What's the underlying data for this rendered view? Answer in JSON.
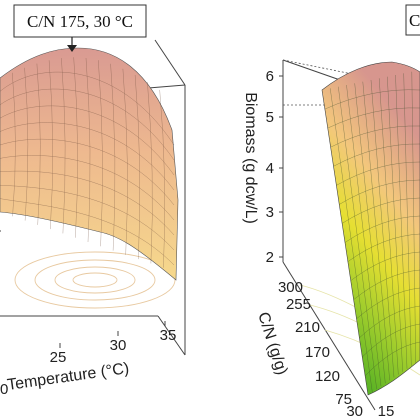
{
  "chart_data": [
    {
      "type": "surface",
      "panel": "left",
      "annotation": "C/N 175, 30 °C",
      "x_axis": {
        "label": "Temperature (°C)",
        "ticks": [
          "25",
          "30",
          "35"
        ],
        "partial_ticks": [
          "0"
        ]
      },
      "surface": {
        "shape": "inverted parabola (dome)",
        "optimum": {
          "cn": 175,
          "temperature": 30
        },
        "colormap": [
          "#d89a90",
          "#f0c79a",
          "#f5d38a"
        ]
      },
      "grid": true
    },
    {
      "type": "surface",
      "panel": "right",
      "annotation_partial": "C",
      "z_axis": {
        "label": "Biomass (g dcw/L)",
        "ticks": [
          2,
          3,
          4,
          5,
          6
        ]
      },
      "y_axis": {
        "label": "C/N (g/g)",
        "ticks": [
          300,
          255,
          210,
          170,
          120,
          75,
          30
        ]
      },
      "x_axis": {
        "ticks": [
          "15"
        ]
      },
      "surface": {
        "colormap": [
          "#23a020",
          "#e8e030",
          "#f5c878",
          "#d8968f"
        ]
      },
      "grid": true
    }
  ]
}
